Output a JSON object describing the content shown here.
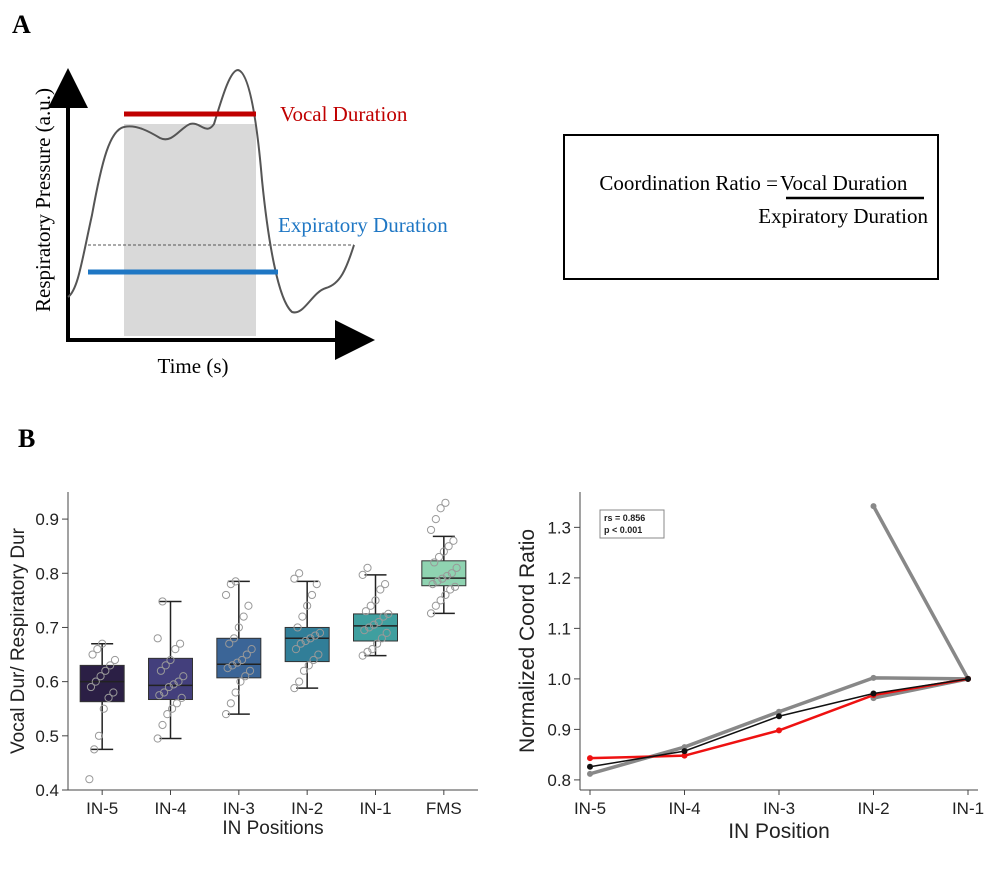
{
  "panel_a": {
    "label": "A",
    "y_axis_label": "Respiratory Pressure (a.u.)",
    "x_axis_label": "Time (s)",
    "vocal_label": "Vocal Duration",
    "expiratory_label": "Expiratory Duration",
    "formula_lhs": "Coordination Ratio = ",
    "formula_numerator": "Vocal Duration",
    "formula_denominator": "Expiratory Duration"
  },
  "panel_b": {
    "label": "B"
  },
  "colors": {
    "vocal": "#c00000",
    "expiratory": "#1f77c4",
    "shade": "#d9d9d9",
    "trace": "#555555",
    "points": "#999999"
  },
  "chart_data": [
    {
      "type": "box",
      "title": "",
      "xlabel": "IN Positions",
      "ylabel": "Vocal Dur/ Respiratory Dur",
      "ylim": [
        0.4,
        0.95
      ],
      "yticks": [
        0.4,
        0.5,
        0.6,
        0.7,
        0.8,
        0.9
      ],
      "categories": [
        "IN-5",
        "IN-4",
        "IN-3",
        "IN-2",
        "IN-1",
        "FMS"
      ],
      "box_colors": [
        "#2b1f45",
        "#433f7c",
        "#3b6597",
        "#317e98",
        "#3f9f9f",
        "#8fd3b1"
      ],
      "boxes": [
        {
          "name": "IN-5",
          "whislo": 0.475,
          "q1": 0.563,
          "median": 0.6,
          "q3": 0.63,
          "whishi": 0.67,
          "points": [
            0.42,
            0.475,
            0.5,
            0.55,
            0.57,
            0.58,
            0.59,
            0.6,
            0.61,
            0.62,
            0.63,
            0.64,
            0.65,
            0.66,
            0.67
          ]
        },
        {
          "name": "IN-4",
          "whislo": 0.495,
          "q1": 0.567,
          "median": 0.593,
          "q3": 0.643,
          "whishi": 0.748,
          "points": [
            0.495,
            0.52,
            0.54,
            0.55,
            0.56,
            0.57,
            0.575,
            0.58,
            0.59,
            0.595,
            0.6,
            0.61,
            0.62,
            0.63,
            0.64,
            0.66,
            0.67,
            0.68,
            0.748
          ]
        },
        {
          "name": "IN-3",
          "whislo": 0.54,
          "q1": 0.607,
          "median": 0.632,
          "q3": 0.68,
          "whishi": 0.785,
          "points": [
            0.54,
            0.56,
            0.58,
            0.6,
            0.61,
            0.62,
            0.625,
            0.63,
            0.635,
            0.64,
            0.65,
            0.66,
            0.67,
            0.68,
            0.7,
            0.72,
            0.74,
            0.76,
            0.78,
            0.785
          ]
        },
        {
          "name": "IN-2",
          "whislo": 0.588,
          "q1": 0.637,
          "median": 0.68,
          "q3": 0.7,
          "whishi": 0.785,
          "points": [
            0.588,
            0.6,
            0.62,
            0.63,
            0.64,
            0.65,
            0.66,
            0.67,
            0.675,
            0.68,
            0.685,
            0.69,
            0.7,
            0.72,
            0.74,
            0.76,
            0.78,
            0.79,
            0.8
          ]
        },
        {
          "name": "IN-1",
          "whislo": 0.648,
          "q1": 0.675,
          "median": 0.703,
          "q3": 0.725,
          "whishi": 0.797,
          "points": [
            0.648,
            0.655,
            0.66,
            0.67,
            0.68,
            0.69,
            0.695,
            0.7,
            0.705,
            0.71,
            0.72,
            0.725,
            0.73,
            0.74,
            0.75,
            0.77,
            0.78,
            0.797,
            0.81
          ]
        },
        {
          "name": "FMS",
          "whislo": 0.726,
          "q1": 0.777,
          "median": 0.791,
          "q3": 0.823,
          "whishi": 0.868,
          "points": [
            0.726,
            0.74,
            0.75,
            0.76,
            0.77,
            0.775,
            0.78,
            0.785,
            0.79,
            0.795,
            0.8,
            0.81,
            0.82,
            0.83,
            0.84,
            0.85,
            0.86,
            0.88,
            0.9,
            0.92,
            0.93
          ]
        }
      ]
    },
    {
      "type": "line",
      "title": "",
      "xlabel": "IN Position",
      "ylabel": "Normalized Coord Ratio",
      "ylim": [
        0.78,
        1.37
      ],
      "yticks": [
        0.8,
        0.9,
        1.0,
        1.1,
        1.2,
        1.3
      ],
      "categories": [
        "IN-5",
        "IN-4",
        "IN-3",
        "IN-2",
        "IN-1"
      ],
      "annotation": [
        "rs = 0.856",
        "p < 0.001"
      ],
      "series": [
        {
          "name": "gray-1",
          "color": "#888888",
          "values": [
            null,
            null,
            null,
            1.342,
            1.0
          ]
        },
        {
          "name": "gray-2",
          "color": "#888888",
          "values": [
            0.812,
            0.865,
            0.935,
            1.002,
            1.0
          ]
        },
        {
          "name": "gray-3",
          "color": "#888888",
          "values": [
            null,
            null,
            null,
            0.962,
            1.0
          ]
        },
        {
          "name": "red",
          "color": "#ee1111",
          "values": [
            0.843,
            0.848,
            0.898,
            0.968,
            1.0
          ]
        },
        {
          "name": "black",
          "color": "#111111",
          "values": [
            0.826,
            0.857,
            0.926,
            0.971,
            1.0
          ]
        }
      ]
    }
  ]
}
